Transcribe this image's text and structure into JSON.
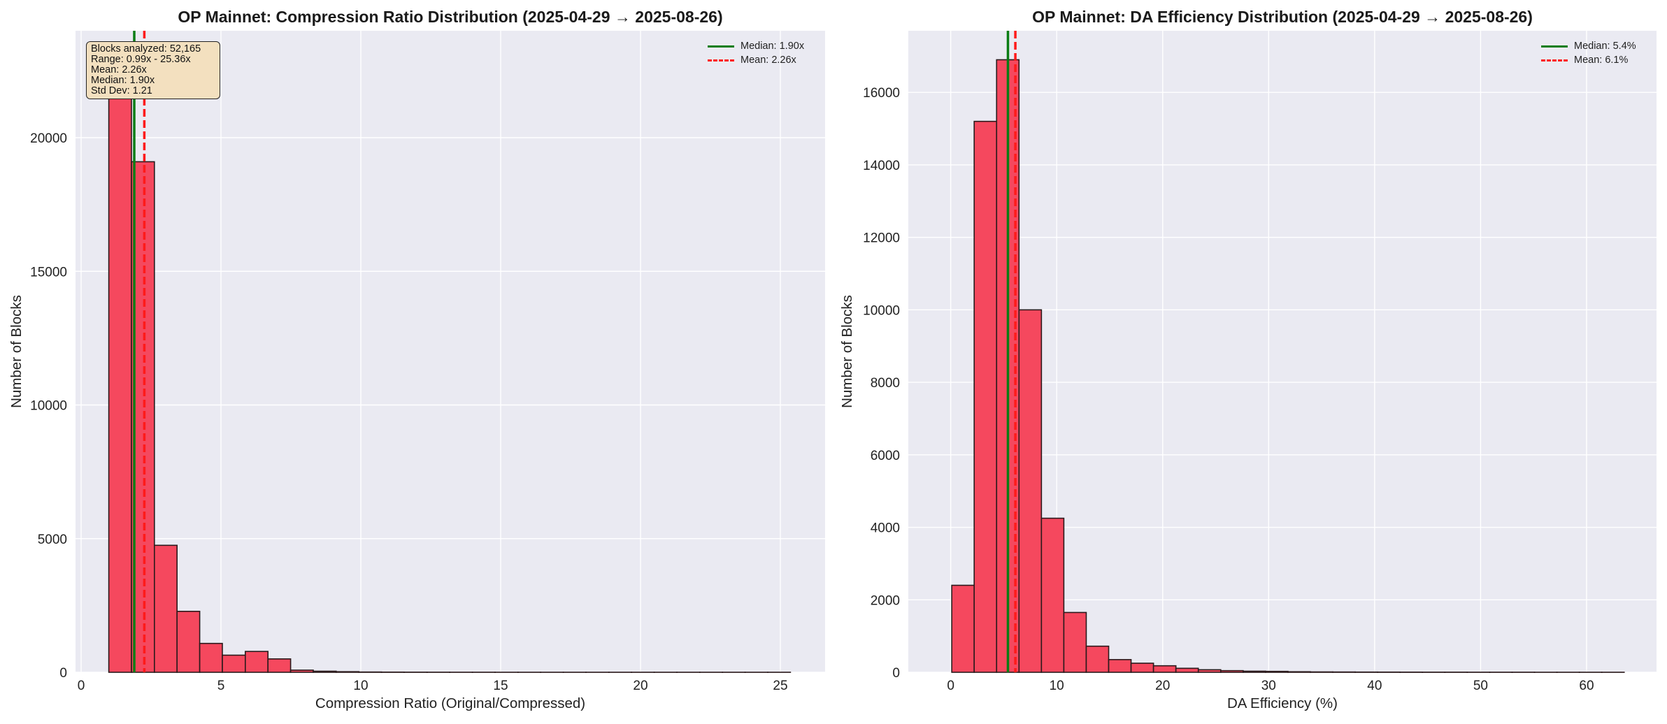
{
  "colors": {
    "bar_fill": "#f5485e",
    "bar_edge": "#2b1a1c",
    "median": "#0a7d14",
    "mean": "#ff1a1a",
    "plot_bg": "#eaeaf2",
    "stats_box_bg": "#f3e0bf"
  },
  "chart_data": [
    {
      "type": "histogram",
      "title": "OP Mainnet: Compression Ratio Distribution (2025-04-29 → 2025-08-26)",
      "xlabel": "Compression Ratio (Original/Compressed)",
      "ylabel": "Number of Blocks",
      "xlim": [
        -0.2,
        26.6
      ],
      "ylim": [
        0,
        24000
      ],
      "xticks": [
        0,
        5,
        10,
        15,
        20,
        25
      ],
      "xtick_labels": [
        "0",
        "5",
        "10",
        "15",
        "20",
        "25"
      ],
      "yticks": [
        0,
        5000,
        10000,
        15000,
        20000
      ],
      "ytick_labels": [
        "0",
        "5000",
        "10000",
        "15000",
        "20000"
      ],
      "grid": true,
      "bins": [
        0.99,
        1.8,
        2.62,
        3.43,
        4.24,
        5.05,
        5.87,
        6.68,
        7.49,
        8.3,
        9.12,
        9.93,
        10.74,
        11.55,
        12.37,
        13.18,
        13.99,
        14.8,
        15.62,
        16.43,
        17.24,
        18.05,
        18.87,
        19.68,
        20.49,
        21.3,
        22.12,
        22.93,
        23.74,
        24.55,
        25.36
      ],
      "values": [
        23300,
        19100,
        4750,
        2280,
        1080,
        640,
        780,
        500,
        80,
        40,
        22,
        10,
        6,
        4,
        3,
        2,
        2,
        1,
        1,
        1,
        1,
        1,
        1,
        1,
        1,
        1,
        1,
        1,
        1,
        1
      ],
      "median": 1.9,
      "mean": 2.26,
      "legend": {
        "position": "upper right",
        "entries": [
          "Median: 1.90x",
          "Mean: 2.26x"
        ]
      },
      "annotation": {
        "lines": [
          "Blocks analyzed: 52,165",
          "Range: 0.99x - 25.36x",
          "Mean: 2.26x",
          "Median: 1.90x",
          "Std Dev: 1.21"
        ]
      }
    },
    {
      "type": "histogram",
      "title": "OP Mainnet: DA Efficiency Distribution (2025-04-29 → 2025-08-26)",
      "xlabel": "DA Efficiency (%)",
      "ylabel": "Number of Blocks",
      "xlim": [
        -4.0,
        66.6
      ],
      "ylim": [
        0,
        17700
      ],
      "xticks": [
        0,
        10,
        20,
        30,
        40,
        50,
        60
      ],
      "xtick_labels": [
        "0",
        "10",
        "20",
        "30",
        "40",
        "50",
        "60"
      ],
      "yticks": [
        0,
        2000,
        4000,
        6000,
        8000,
        10000,
        12000,
        14000,
        16000
      ],
      "ytick_labels": [
        "0",
        "2000",
        "4000",
        "6000",
        "8000",
        "10000",
        "12000",
        "14000",
        "16000"
      ],
      "grid": true,
      "bins": [
        0.1,
        2.215,
        4.33,
        6.445,
        8.56,
        10.675,
        12.79,
        14.905,
        17.02,
        19.135,
        21.25,
        23.365,
        25.48,
        27.595,
        29.71,
        31.825,
        33.94,
        36.055,
        38.17,
        40.285,
        42.4,
        44.515,
        46.63,
        48.745,
        50.86,
        52.975,
        55.09,
        57.205,
        59.32,
        61.435,
        63.55
      ],
      "values": [
        2400,
        15200,
        16900,
        10000,
        4250,
        1650,
        720,
        350,
        250,
        180,
        110,
        70,
        45,
        30,
        25,
        15,
        10,
        8,
        6,
        5,
        4,
        3,
        3,
        2,
        2,
        2,
        1,
        1,
        1,
        1
      ],
      "median": 5.4,
      "mean": 6.1,
      "legend": {
        "position": "upper right",
        "entries": [
          "Median: 5.4%",
          "Mean: 6.1%"
        ]
      }
    }
  ]
}
